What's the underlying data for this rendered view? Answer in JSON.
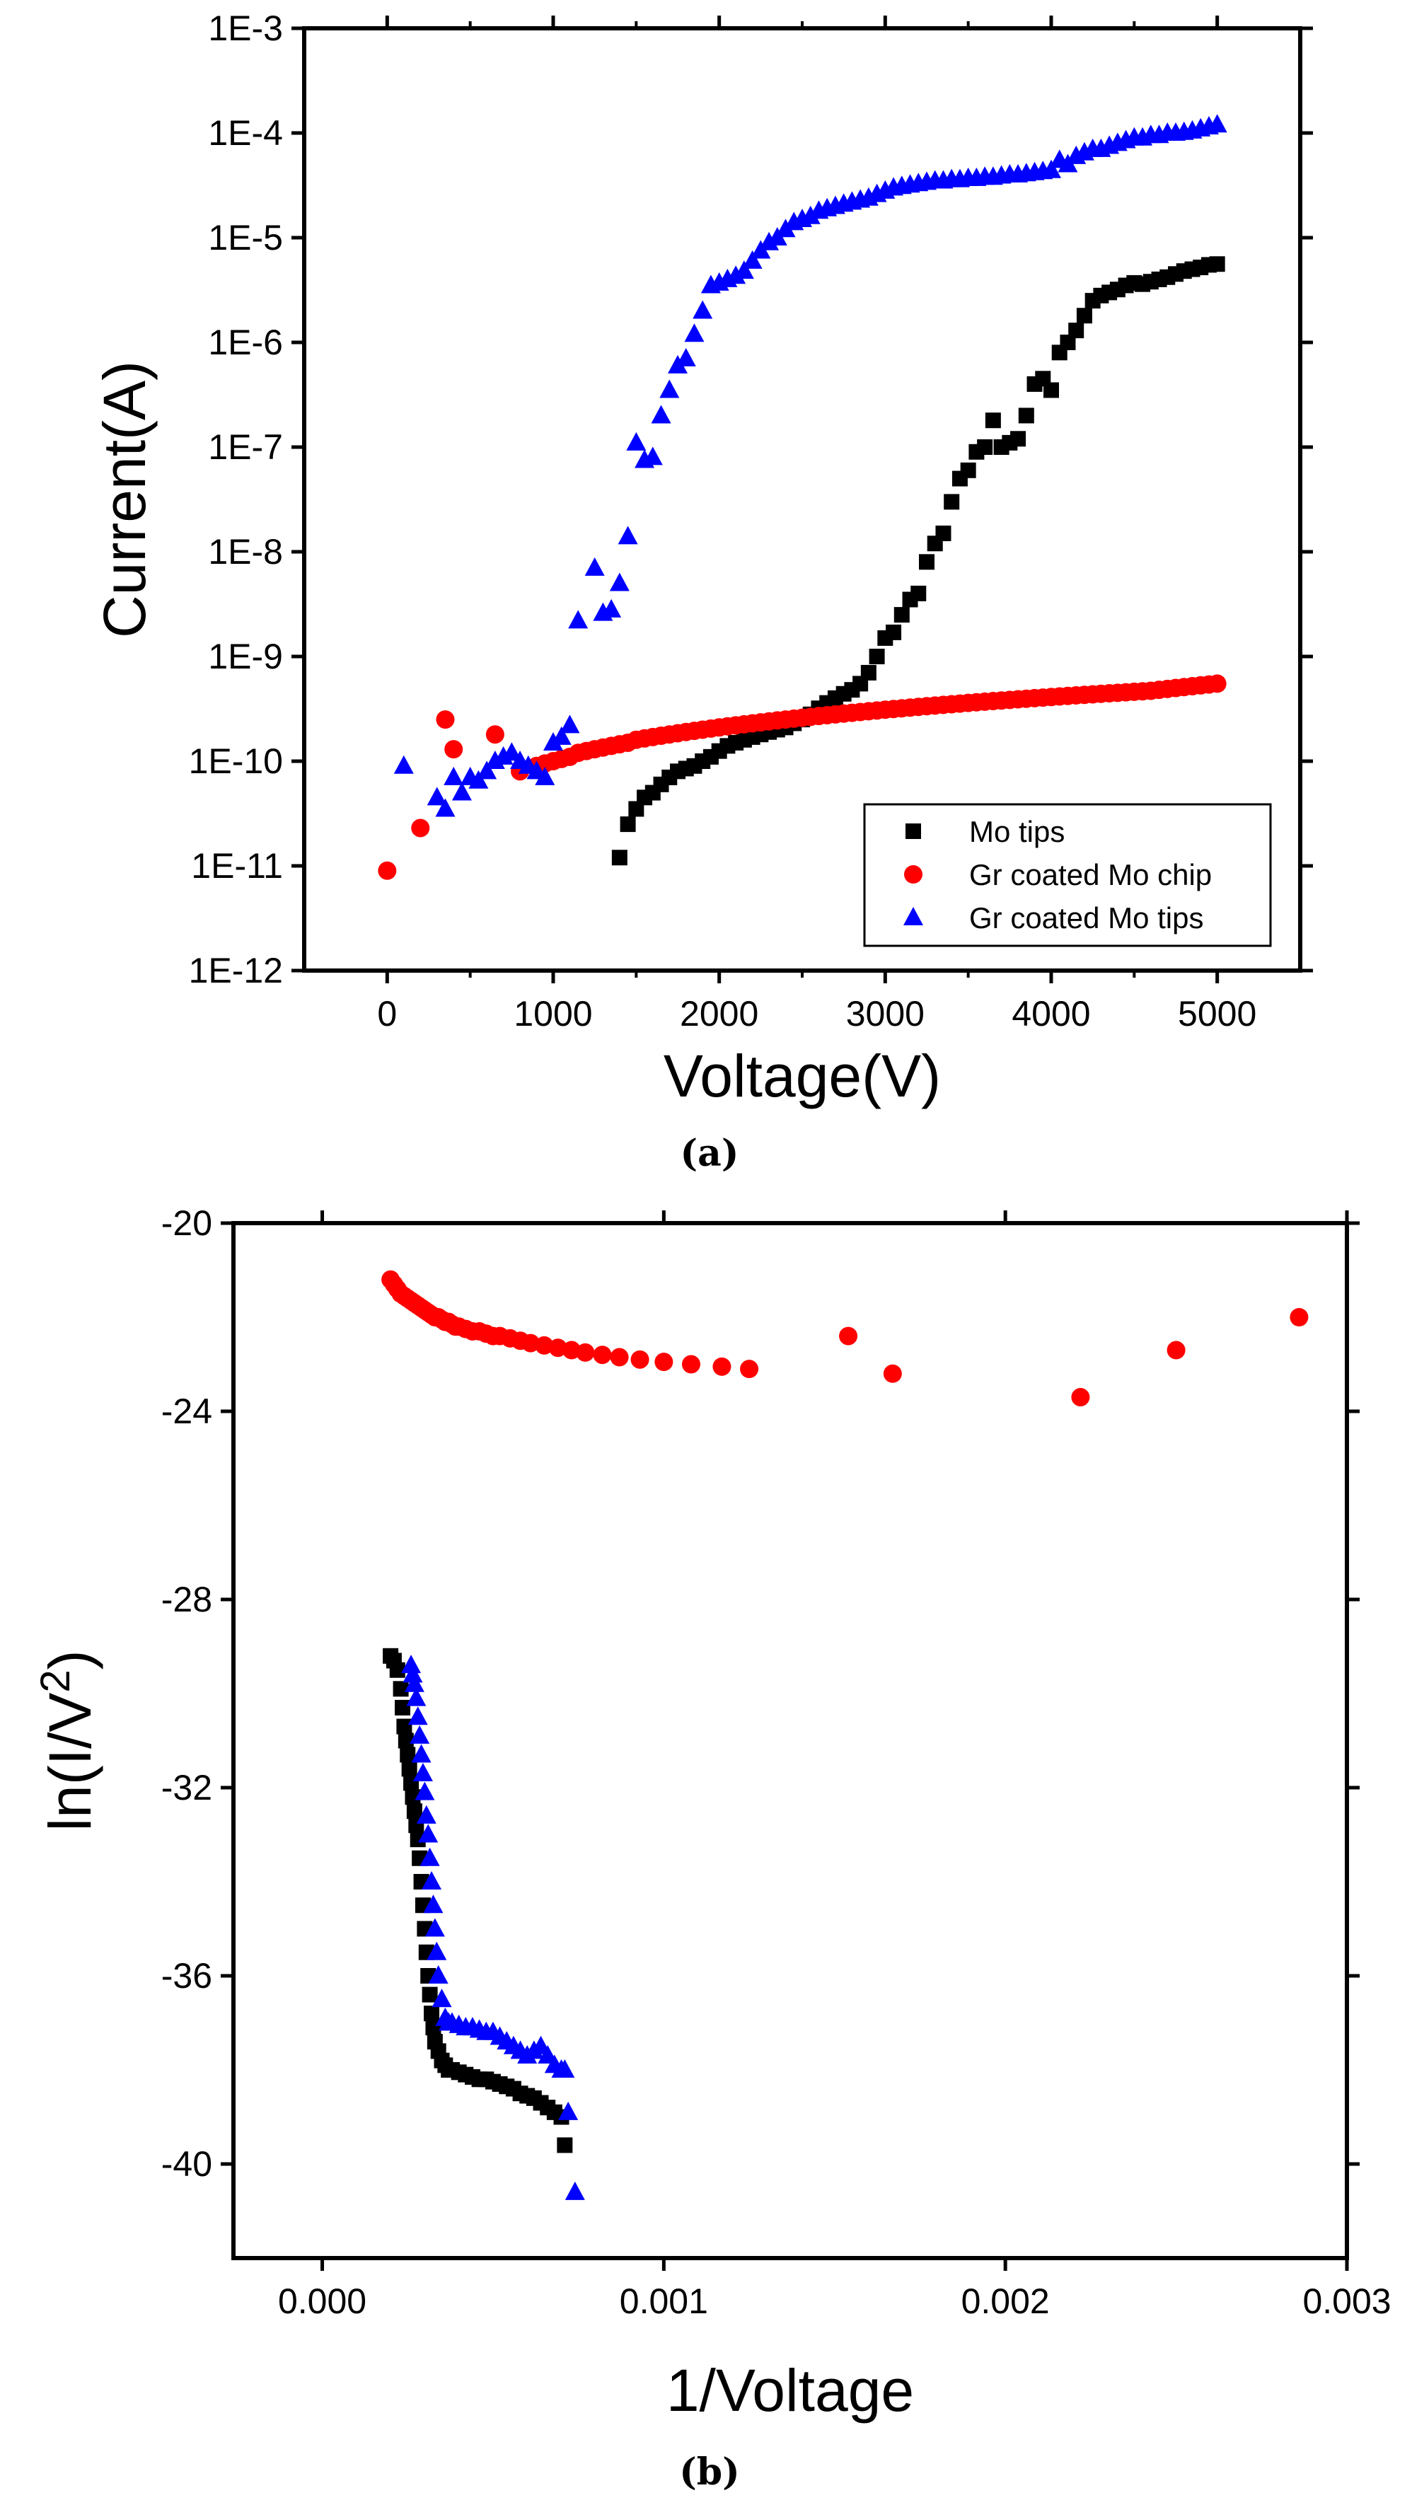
{
  "colors": {
    "mo_tips": "#000000",
    "gr_chip": "#ff0000",
    "gr_tips": "#0000ff"
  },
  "chart_data": [
    {
      "type": "scatter",
      "caption": "(a)",
      "xlabel": "Voltage(V)",
      "ylabel": "Current(A)",
      "xlim": [
        -500,
        5500
      ],
      "ylim": [
        1e-12,
        0.001
      ],
      "yscale": "log",
      "xticks": [
        0,
        1000,
        2000,
        3000,
        4000,
        5000
      ],
      "xtick_labels": [
        "0",
        "1000",
        "2000",
        "3000",
        "4000",
        "5000"
      ],
      "yticks": [
        1e-12,
        1e-11,
        1e-10,
        1e-09,
        1e-08,
        1e-07,
        1e-06,
        1e-05,
        0.0001,
        0.001
      ],
      "ytick_labels": [
        "1E-12",
        "1E-11",
        "1E-10",
        "1E-9",
        "1E-8",
        "1E-7",
        "1E-6",
        "1E-5",
        "1E-4",
        "1E-3"
      ],
      "grid": false,
      "legend": {
        "position": "bottom-right",
        "entries": [
          "Mo tips",
          "Gr coated Mo chip",
          "Gr coated Mo tips"
        ]
      },
      "series": [
        {
          "name": "Mo tips",
          "marker": "square",
          "color": "#000000",
          "x": [
            1400,
            1450,
            1500,
            1550,
            1600,
            1650,
            1700,
            1750,
            1800,
            1850,
            1900,
            1950,
            2000,
            2050,
            2100,
            2150,
            2200,
            2250,
            2300,
            2350,
            2400,
            2450,
            2500,
            2550,
            2600,
            2650,
            2700,
            2750,
            2800,
            2850,
            2900,
            2950,
            3000,
            3050,
            3100,
            3150,
            3200,
            3250,
            3300,
            3350,
            3400,
            3450,
            3500,
            3550,
            3600,
            3650,
            3700,
            3750,
            3800,
            3850,
            3900,
            3950,
            4000,
            4050,
            4100,
            4150,
            4200,
            4250,
            4300,
            4350,
            4400,
            4450,
            4500,
            4550,
            4600,
            4650,
            4700,
            4750,
            4800,
            4850,
            4900,
            4950,
            5000
          ],
          "y": [
            1.2e-11,
            2.5e-11,
            3.5e-11,
            4.5e-11,
            5e-11,
            6e-11,
            7e-11,
            8e-11,
            8.5e-11,
            9e-11,
            1e-10,
            1.1e-10,
            1.25e-10,
            1.4e-10,
            1.5e-10,
            1.6e-10,
            1.7e-10,
            1.8e-10,
            1.9e-10,
            2e-10,
            2.1e-10,
            2.3e-10,
            2.5e-10,
            2.8e-10,
            3.2e-10,
            3.6e-10,
            4e-10,
            4.4e-10,
            4.8e-10,
            5.5e-10,
            7e-10,
            1e-09,
            1.5e-09,
            1.7e-09,
            2.5e-09,
            3.5e-09,
            4e-09,
            8e-09,
            1.2e-08,
            1.5e-08,
            3e-08,
            5e-08,
            6e-08,
            9e-08,
            1e-07,
            1.8e-07,
            1e-07,
            1.1e-07,
            1.2e-07,
            2e-07,
            4e-07,
            4.5e-07,
            3.5e-07,
            8e-07,
            1e-06,
            1.3e-06,
            1.8e-06,
            2.5e-06,
            2.8e-06,
            3e-06,
            3.2e-06,
            3.5e-06,
            3.7e-06,
            3.6e-06,
            3.8e-06,
            4e-06,
            4.2e-06,
            4.5e-06,
            4.8e-06,
            5e-06,
            5.2e-06,
            5.5e-06,
            5.6e-06
          ]
        },
        {
          "name": "Gr coated Mo chip",
          "marker": "circle",
          "color": "#ff0000",
          "x": [
            0,
            200,
            350,
            400,
            650,
            800,
            900,
            950,
            1000,
            1050,
            1100,
            1150,
            1200,
            1250,
            1300,
            1350,
            1400,
            1450,
            1500,
            1550,
            1600,
            1650,
            1700,
            1750,
            1800,
            1850,
            1900,
            1950,
            2000,
            2050,
            2100,
            2150,
            2200,
            2250,
            2300,
            2350,
            2400,
            2450,
            2500,
            2550,
            2600,
            2650,
            2700,
            2750,
            2800,
            2850,
            2900,
            2950,
            3000,
            3050,
            3100,
            3150,
            3200,
            3250,
            3300,
            3350,
            3400,
            3450,
            3500,
            3550,
            3600,
            3650,
            3700,
            3750,
            3800,
            3850,
            3900,
            3950,
            4000,
            4050,
            4100,
            4150,
            4200,
            4250,
            4300,
            4350,
            4400,
            4450,
            4500,
            4550,
            4600,
            4650,
            4700,
            4750,
            4800,
            4850,
            4900,
            4950,
            5000
          ],
          "y": [
            9e-12,
            2.3e-11,
            2.5e-10,
            1.3e-10,
            1.8e-10,
            8e-11,
            9e-11,
            9.5e-11,
            1e-10,
            1.05e-10,
            1.1e-10,
            1.2e-10,
            1.25e-10,
            1.3e-10,
            1.35e-10,
            1.4e-10,
            1.45e-10,
            1.5e-10,
            1.6e-10,
            1.65e-10,
            1.7e-10,
            1.75e-10,
            1.8e-10,
            1.85e-10,
            1.9e-10,
            1.95e-10,
            2e-10,
            2.05e-10,
            2.1e-10,
            2.15e-10,
            2.2e-10,
            2.25e-10,
            2.3e-10,
            2.35e-10,
            2.4e-10,
            2.45e-10,
            2.5e-10,
            2.55e-10,
            2.6e-10,
            2.65e-10,
            2.7e-10,
            2.75e-10,
            2.8e-10,
            2.85e-10,
            2.9e-10,
            2.95e-10,
            3e-10,
            3.05e-10,
            3.1e-10,
            3.15e-10,
            3.2e-10,
            3.25e-10,
            3.3e-10,
            3.35e-10,
            3.4e-10,
            3.45e-10,
            3.5e-10,
            3.55e-10,
            3.6e-10,
            3.65e-10,
            3.7e-10,
            3.75e-10,
            3.8e-10,
            3.85e-10,
            3.9e-10,
            3.95e-10,
            4e-10,
            4.05e-10,
            4.1e-10,
            4.15e-10,
            4.2e-10,
            4.25e-10,
            4.3e-10,
            4.35e-10,
            4.4e-10,
            4.45e-10,
            4.5e-10,
            4.55e-10,
            4.6e-10,
            4.65e-10,
            4.7e-10,
            4.8e-10,
            4.9e-10,
            5e-10,
            5.1e-10,
            5.2e-10,
            5.3e-10,
            5.4e-10,
            5.5e-10
          ]
        },
        {
          "name": "Gr coated Mo tips",
          "marker": "triangle",
          "color": "#0000ff",
          "x": [
            100,
            300,
            350,
            400,
            450,
            500,
            550,
            600,
            650,
            700,
            750,
            800,
            850,
            900,
            950,
            1000,
            1050,
            1100,
            1150,
            1250,
            1300,
            1350,
            1400,
            1450,
            1500,
            1550,
            1600,
            1650,
            1700,
            1750,
            1800,
            1850,
            1900,
            1950,
            2000,
            2050,
            2100,
            2150,
            2200,
            2250,
            2300,
            2350,
            2400,
            2450,
            2500,
            2550,
            2600,
            2650,
            2700,
            2750,
            2800,
            2850,
            2900,
            2950,
            3000,
            3050,
            3100,
            3150,
            3200,
            3250,
            3300,
            3350,
            3400,
            3450,
            3500,
            3550,
            3600,
            3650,
            3700,
            3750,
            3800,
            3850,
            3900,
            3950,
            4000,
            4050,
            4100,
            4150,
            4200,
            4250,
            4300,
            4350,
            4400,
            4450,
            4500,
            4550,
            4600,
            4650,
            4700,
            4750,
            4800,
            4850,
            4900,
            4950,
            5000
          ],
          "y": [
            9e-11,
            4.5e-11,
            3.5e-11,
            7e-11,
            5e-11,
            7e-11,
            6.5e-11,
            8e-11,
            1e-10,
            1.1e-10,
            1.2e-10,
            1e-10,
            9e-11,
            8e-11,
            7e-11,
            1.5e-10,
            1.7e-10,
            2.2e-10,
            2.2e-09,
            7e-09,
            2.6e-09,
            2.8e-09,
            5e-09,
            1.4e-08,
            1.1e-07,
            7.5e-08,
            8e-08,
            2e-07,
            3.5e-07,
            6e-07,
            7e-07,
            1.2e-06,
            2e-06,
            3.5e-06,
            3.7e-06,
            4e-06,
            4.3e-06,
            4.8e-06,
            6e-06,
            7.5e-06,
            9e-06,
            1e-05,
            1.2e-05,
            1.4e-05,
            1.5e-05,
            1.6e-05,
            1.8e-05,
            1.9e-05,
            2e-05,
            2.1e-05,
            2.2e-05,
            2.3e-05,
            2.4e-05,
            2.6e-05,
            2.8e-05,
            3e-05,
            3.1e-05,
            3.2e-05,
            3.3e-05,
            3.4e-05,
            3.5e-05,
            3.5e-05,
            3.6e-05,
            3.6e-05,
            3.7e-05,
            3.7e-05,
            3.8e-05,
            3.8e-05,
            3.9e-05,
            4e-05,
            4e-05,
            4.1e-05,
            4.2e-05,
            4.3e-05,
            4.4e-05,
            5.5e-05,
            5e-05,
            6e-05,
            6.5e-05,
            7e-05,
            7e-05,
            7.5e-05,
            8e-05,
            8.5e-05,
            9e-05,
            9e-05,
            9.5e-05,
            9.5e-05,
            0.0001,
            0.0001,
            0.000102,
            0.000105,
            0.00011,
            0.000115,
            0.00012
          ]
        }
      ]
    },
    {
      "type": "scatter",
      "caption": "(b)",
      "xlabel": "1/Voltage",
      "ylabel": "ln(I/V",
      "ylabel_sup": "2",
      "ylabel_end": ")",
      "xlim": [
        -0.00026,
        0.003
      ],
      "ylim": [
        -42,
        -20
      ],
      "xticks": [
        0,
        0.001,
        0.002,
        0.003
      ],
      "xtick_labels": [
        "0.000",
        "0.001",
        "0.002",
        "0.003"
      ],
      "yticks": [
        -20,
        -24,
        -28,
        -32,
        -36,
        -40
      ],
      "ytick_labels": [
        "-20",
        "-24",
        "-28",
        "-32",
        "-36",
        "-40"
      ],
      "grid": false,
      "series": [
        {
          "marker": "square",
          "color": "#000000",
          "x": [
            0.0002,
            0.00021,
            0.00022,
            0.00023,
            0.000235,
            0.00024,
            0.000245,
            0.00025,
            0.000255,
            0.00026,
            0.000265,
            0.00027,
            0.000275,
            0.00028,
            0.000285,
            0.00029,
            0.000295,
            0.0003,
            0.000305,
            0.00031,
            0.000315,
            0.00032,
            0.000325,
            0.00033,
            0.00034,
            0.00035,
            0.00036,
            0.00037,
            0.00038,
            0.0004,
            0.00042,
            0.00044,
            0.00046,
            0.00048,
            0.0005,
            0.00052,
            0.00054,
            0.00056,
            0.00058,
            0.0006,
            0.00062,
            0.00064,
            0.00066,
            0.00068,
            0.0007,
            0.00071
          ],
          "y": [
            -29.2,
            -29.3,
            -29.5,
            -29.9,
            -30.3,
            -30.7,
            -31.0,
            -31.3,
            -31.6,
            -31.9,
            -32.2,
            -32.5,
            -32.8,
            -33.1,
            -33.5,
            -34.0,
            -34.5,
            -35.0,
            -35.5,
            -36.0,
            -36.4,
            -36.8,
            -37.1,
            -37.4,
            -37.6,
            -37.8,
            -37.9,
            -38.0,
            -38.0,
            -38.05,
            -38.1,
            -38.15,
            -38.2,
            -38.2,
            -38.25,
            -38.3,
            -38.35,
            -38.4,
            -38.5,
            -38.55,
            -38.6,
            -38.7,
            -38.8,
            -38.9,
            -39.0,
            -39.6
          ]
        },
        {
          "marker": "circle",
          "color": "#ff0000",
          "x": [
            0.0002,
            0.00021,
            0.00022,
            0.00023,
            0.00024,
            0.00025,
            0.00026,
            0.00027,
            0.00028,
            0.00029,
            0.0003,
            0.00031,
            0.00032,
            0.00033,
            0.00034,
            0.00035,
            0.00036,
            0.00037,
            0.00038,
            0.00039,
            0.0004,
            0.00042,
            0.00044,
            0.00046,
            0.00048,
            0.0005,
            0.00052,
            0.00055,
            0.00058,
            0.00061,
            0.00065,
            0.00069,
            0.00073,
            0.00077,
            0.00082,
            0.00087,
            0.00093,
            0.001,
            0.00108,
            0.00117,
            0.00125,
            0.00154,
            0.00167,
            0.00222,
            0.0025,
            0.00286
          ],
          "y": [
            -21.2,
            -21.3,
            -21.4,
            -21.5,
            -21.55,
            -21.6,
            -21.65,
            -21.7,
            -21.75,
            -21.8,
            -21.85,
            -21.9,
            -21.95,
            -22.0,
            -22.0,
            -22.05,
            -22.1,
            -22.1,
            -22.15,
            -22.2,
            -22.2,
            -22.25,
            -22.3,
            -22.3,
            -22.35,
            -22.4,
            -22.4,
            -22.45,
            -22.5,
            -22.55,
            -22.6,
            -22.65,
            -22.7,
            -22.75,
            -22.8,
            -22.85,
            -22.9,
            -22.95,
            -23.0,
            -23.05,
            -23.1,
            -22.4,
            -23.2,
            -23.7,
            -22.7,
            -22.0
          ]
        },
        {
          "marker": "triangle",
          "color": "#0000ff",
          "x": [
            0.00026,
            0.000265,
            0.00027,
            0.000275,
            0.00028,
            0.000285,
            0.00029,
            0.000295,
            0.0003,
            0.000305,
            0.00031,
            0.000315,
            0.00032,
            0.000325,
            0.00033,
            0.000335,
            0.00034,
            0.00035,
            0.00036,
            0.00037,
            0.00038,
            0.0004,
            0.00042,
            0.00044,
            0.00046,
            0.00048,
            0.0005,
            0.00052,
            0.00054,
            0.00056,
            0.00058,
            0.0006,
            0.00062,
            0.00064,
            0.00066,
            0.00068,
            0.0007,
            0.00071,
            0.00072,
            0.00074
          ],
          "y": [
            -29.4,
            -29.6,
            -29.8,
            -30.1,
            -30.5,
            -30.9,
            -31.3,
            -31.7,
            -32.1,
            -32.6,
            -33.0,
            -33.5,
            -34.0,
            -34.5,
            -35.0,
            -35.5,
            -36.0,
            -36.5,
            -36.9,
            -37.0,
            -37.0,
            -37.05,
            -37.1,
            -37.1,
            -37.15,
            -37.2,
            -37.2,
            -37.3,
            -37.4,
            -37.5,
            -37.6,
            -37.7,
            -37.6,
            -37.5,
            -37.7,
            -37.9,
            -38.0,
            -38.0,
            -38.9,
            -40.6
          ]
        }
      ]
    }
  ]
}
